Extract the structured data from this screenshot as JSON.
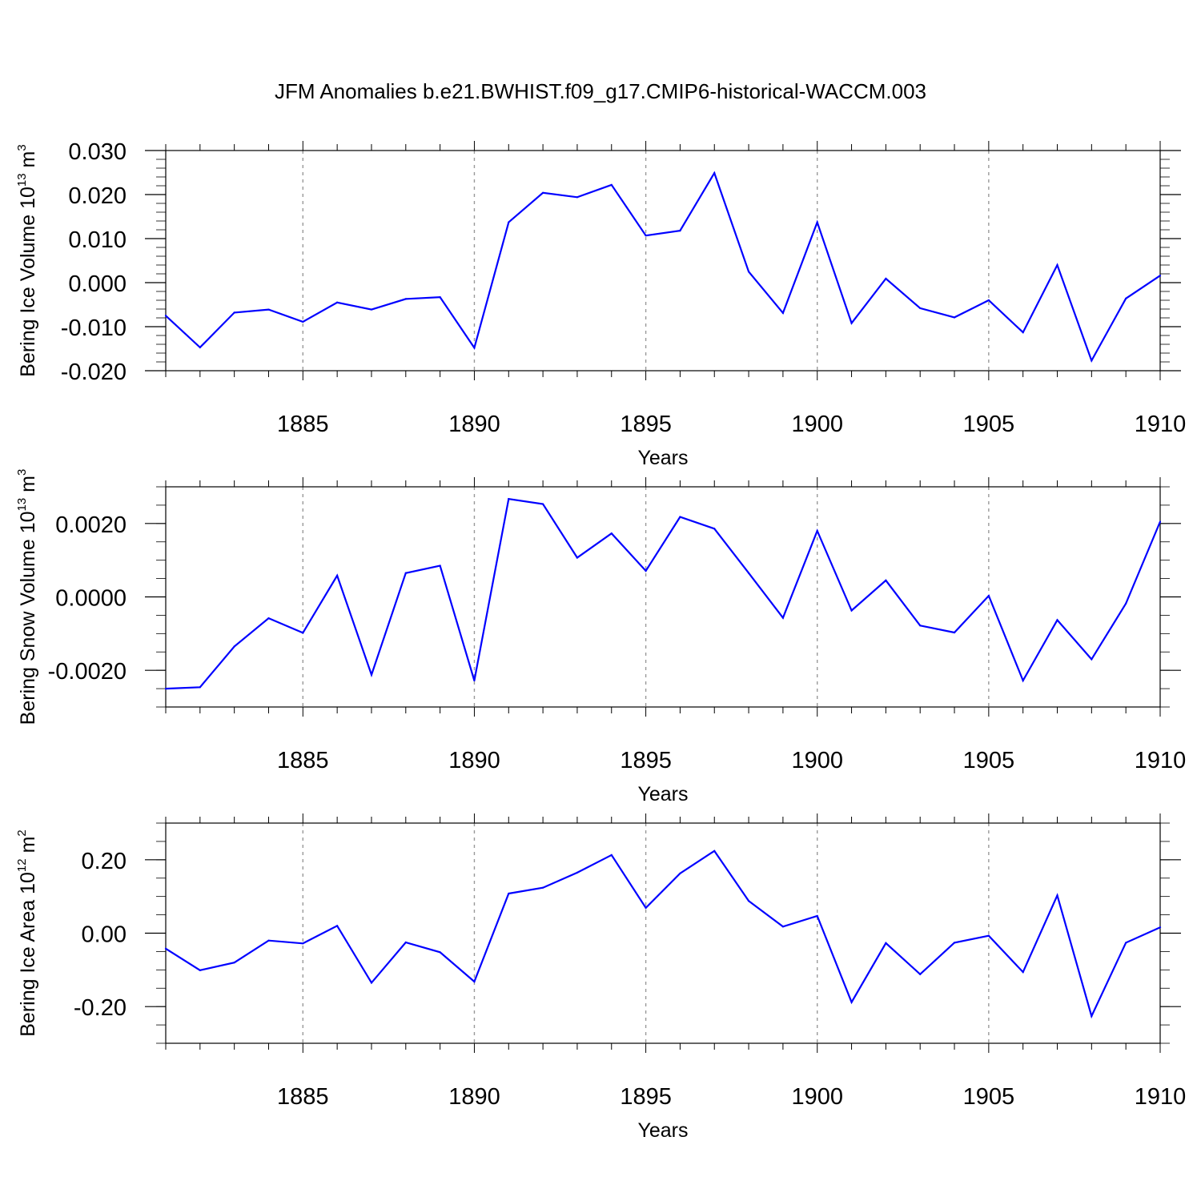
{
  "title": "JFM Anomalies b.e21.BWHIST.f09_g17.CMIP6-historical-WACCM.003",
  "chart_data": [
    {
      "type": "line",
      "name": "ice-volume",
      "ylabel_main": "Bering Ice Volume 10",
      "ylabel_exp": "13",
      "ylabel_unit": " m",
      "ylabel_unit_exp": "3",
      "xlabel": "Years",
      "xlim": [
        1881,
        1910
      ],
      "ylim": [
        -0.02,
        0.03
      ],
      "x_ticks": [
        1885,
        1890,
        1895,
        1900,
        1905,
        1910
      ],
      "x_tick_labels": [
        "1885",
        "1890",
        "1895",
        "1900",
        "1905",
        "1910"
      ],
      "y_ticks": [
        -0.02,
        -0.01,
        0.0,
        0.01,
        0.02,
        0.03
      ],
      "y_tick_labels": [
        "-0.020",
        "-0.010",
        "0.000",
        "0.010",
        "0.020",
        "0.030"
      ],
      "y_minor_step": 0.002,
      "grid": "dashed vertical at major x ticks",
      "line_color": "#0000ff",
      "x": [
        1881,
        1882,
        1883,
        1884,
        1885,
        1886,
        1887,
        1888,
        1889,
        1890,
        1891,
        1892,
        1893,
        1894,
        1895,
        1896,
        1897,
        1898,
        1899,
        1900,
        1901,
        1902,
        1903,
        1904,
        1905,
        1906,
        1907,
        1908,
        1909,
        1910
      ],
      "values": [
        -0.0075,
        -0.0147,
        -0.0068,
        -0.0061,
        -0.0089,
        -0.0045,
        -0.0061,
        -0.0037,
        -0.0033,
        -0.0148,
        0.0137,
        0.0204,
        0.0194,
        0.0222,
        0.0107,
        0.0118,
        0.0249,
        0.0025,
        -0.0069,
        0.0137,
        -0.0092,
        0.0009,
        -0.0058,
        -0.0079,
        -0.004,
        -0.0113,
        0.004,
        -0.0177,
        -0.0036,
        0.0016
      ]
    },
    {
      "type": "line",
      "name": "snow-volume",
      "ylabel_main": "Bering Snow Volume 10",
      "ylabel_exp": "13",
      "ylabel_unit": " m",
      "ylabel_unit_exp": "3",
      "xlabel": "Years",
      "xlim": [
        1881,
        1910
      ],
      "ylim": [
        -0.003,
        0.003
      ],
      "x_ticks": [
        1885,
        1890,
        1895,
        1900,
        1905,
        1910
      ],
      "x_tick_labels": [
        "1885",
        "1890",
        "1895",
        "1900",
        "1905",
        "1910"
      ],
      "y_ticks": [
        -0.002,
        0.0,
        0.002
      ],
      "y_tick_labels": [
        "-0.0020",
        "0.0000",
        "0.0020"
      ],
      "y_minor_step": 0.0005,
      "grid": "dashed vertical at major x ticks",
      "line_color": "#0000ff",
      "x": [
        1881,
        1882,
        1883,
        1884,
        1885,
        1886,
        1887,
        1888,
        1889,
        1890,
        1891,
        1892,
        1893,
        1894,
        1895,
        1896,
        1897,
        1898,
        1899,
        1900,
        1901,
        1902,
        1903,
        1904,
        1905,
        1906,
        1907,
        1908,
        1909,
        1910
      ],
      "values": [
        -0.0025,
        -0.00246,
        -0.00135,
        -0.00058,
        -0.00098,
        0.00058,
        -0.00212,
        0.00065,
        0.00085,
        -0.00228,
        0.00267,
        0.00253,
        0.00107,
        0.00173,
        0.00071,
        0.00218,
        0.00186,
        0.00065,
        -0.00057,
        0.0018,
        -0.00037,
        0.00045,
        -0.00078,
        -0.00097,
        3e-05,
        -0.00228,
        -0.00063,
        -0.0017,
        -0.00018,
        0.00205
      ]
    },
    {
      "type": "line",
      "name": "ice-area",
      "ylabel_main": "Bering Ice Area 10",
      "ylabel_exp": "12",
      "ylabel_unit": " m",
      "ylabel_unit_exp": "2",
      "xlabel": "Years",
      "xlim": [
        1881,
        1910
      ],
      "ylim": [
        -0.3,
        0.3
      ],
      "x_ticks": [
        1885,
        1890,
        1895,
        1900,
        1905,
        1910
      ],
      "x_tick_labels": [
        "1885",
        "1890",
        "1895",
        "1900",
        "1905",
        "1910"
      ],
      "y_ticks": [
        -0.2,
        0.0,
        0.2
      ],
      "y_tick_labels": [
        "-0.20",
        "0.00",
        "0.20"
      ],
      "y_minor_step": 0.05,
      "grid": "dashed vertical at major x ticks",
      "line_color": "#0000ff",
      "x": [
        1881,
        1882,
        1883,
        1884,
        1885,
        1886,
        1887,
        1888,
        1889,
        1890,
        1891,
        1892,
        1893,
        1894,
        1895,
        1896,
        1897,
        1898,
        1899,
        1900,
        1901,
        1902,
        1903,
        1904,
        1905,
        1906,
        1907,
        1908,
        1909,
        1910
      ],
      "values": [
        -0.042,
        -0.101,
        -0.08,
        -0.02,
        -0.028,
        0.02,
        -0.135,
        -0.025,
        -0.052,
        -0.132,
        0.108,
        0.124,
        0.165,
        0.213,
        0.069,
        0.163,
        0.224,
        0.088,
        0.018,
        0.047,
        -0.188,
        -0.027,
        -0.112,
        -0.026,
        -0.007,
        -0.106,
        0.103,
        -0.226,
        -0.026,
        0.016
      ]
    }
  ]
}
